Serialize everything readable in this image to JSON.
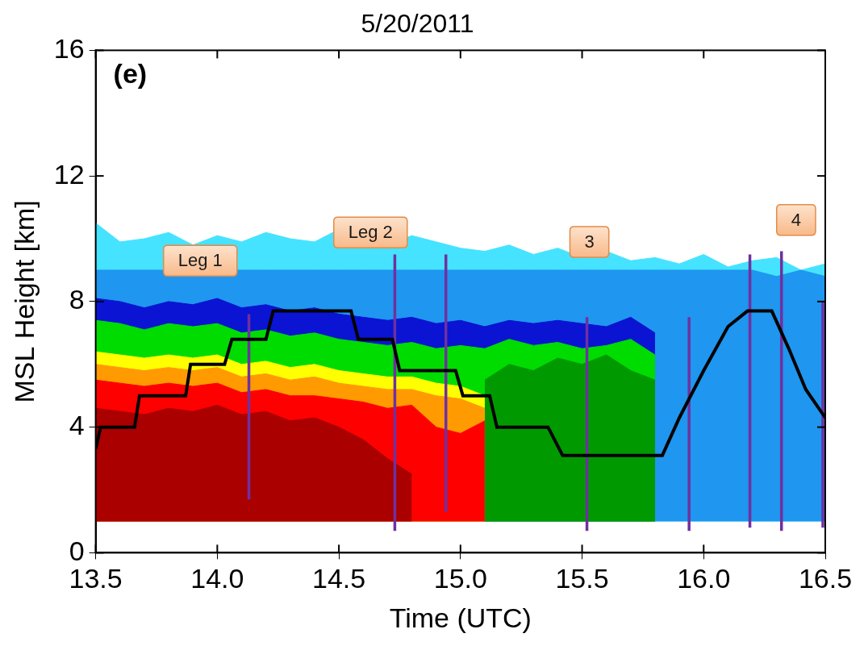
{
  "chart_data": {
    "type": "contour",
    "title": "5/20/2011",
    "panel_label": "(e)",
    "x_label": "Time (UTC)",
    "y_label": "MSL Height [km]",
    "xlim": [
      13.5,
      16.5
    ],
    "xticks": [
      13.5,
      {
        "value": 14,
        "label": "14.0"
      },
      14.5,
      {
        "value": 15,
        "label": "15.0"
      },
      15.5,
      {
        "value": 16,
        "label": "16.0"
      },
      16.5
    ],
    "ylim": [
      0,
      16
    ],
    "yticks": [
      0,
      4,
      8,
      12,
      16
    ],
    "grid": false,
    "legend": false,
    "echo_base": 1,
    "x": [
      13.5,
      13.6,
      13.7,
      13.8,
      13.9,
      14.0,
      14.1,
      14.2,
      14.3,
      14.4,
      14.5,
      14.6,
      14.7,
      14.8,
      14.9,
      15.0,
      15.1,
      15.2,
      15.3,
      15.4,
      15.5,
      15.6,
      15.7,
      15.8,
      15.9,
      16.0,
      16.1,
      16.2,
      16.3,
      16.4,
      16.5
    ],
    "series": [
      {
        "type": "area",
        "color": "#45e3ff",
        "values": [
          10.5,
          9.9,
          10.0,
          10.2,
          9.8,
          10.1,
          9.9,
          10.2,
          10.0,
          9.9,
          10.3,
          10.0,
          9.8,
          10.1,
          9.9,
          9.7,
          9.6,
          9.8,
          9.5,
          9.7,
          9.4,
          9.6,
          9.3,
          9.4,
          9.2,
          9.5,
          9.1,
          9.3,
          9.4,
          9.0,
          9.2
        ]
      },
      {
        "type": "area",
        "color": "#1f96ef",
        "values": [
          9.0,
          9.0,
          9.0,
          9.0,
          9.0,
          9.0,
          9.0,
          9.0,
          9.0,
          9.0,
          9.0,
          9.0,
          9.0,
          9.0,
          9.0,
          9.0,
          9.0,
          9.0,
          9.0,
          9.0,
          9.0,
          9.0,
          9.0,
          9.0,
          9.0,
          9.0,
          9.0,
          9.0,
          8.8,
          9.0,
          8.8
        ]
      },
      {
        "type": "area",
        "color": "#0a14d2",
        "values": [
          8.1,
          8.0,
          7.8,
          8.0,
          7.9,
          8.1,
          7.8,
          7.9,
          7.7,
          7.8,
          7.6,
          7.5,
          7.4,
          7.5,
          7.3,
          7.4,
          7.2,
          7.4,
          7.3,
          7.4,
          7.3,
          7.2,
          7.5,
          7.0,
          null,
          null,
          null,
          null,
          null,
          null,
          null
        ]
      },
      {
        "type": "area",
        "color": "#00dc00",
        "values": [
          7.4,
          7.3,
          7.1,
          7.3,
          7.2,
          7.3,
          7.0,
          7.1,
          6.9,
          7.0,
          6.8,
          6.7,
          6.6,
          6.7,
          6.5,
          6.6,
          6.5,
          6.8,
          6.6,
          6.7,
          6.5,
          6.6,
          6.8,
          6.3,
          null,
          null,
          null,
          null,
          null,
          null,
          null
        ]
      },
      {
        "type": "area",
        "color": "#009a00",
        "values": [
          null,
          null,
          null,
          null,
          null,
          null,
          null,
          null,
          null,
          null,
          null,
          null,
          null,
          null,
          null,
          null,
          5.5,
          6.0,
          5.8,
          6.2,
          6.0,
          6.3,
          5.8,
          5.5,
          null,
          null,
          null,
          null,
          null,
          null,
          null
        ]
      },
      {
        "type": "area",
        "color": "#ffff00",
        "values": [
          6.4,
          6.3,
          6.2,
          6.3,
          6.2,
          6.3,
          6.0,
          6.1,
          5.9,
          6.0,
          5.8,
          5.7,
          5.6,
          5.6,
          5.4,
          5.3,
          5.0,
          null,
          null,
          null,
          null,
          null,
          null,
          null,
          null,
          null,
          null,
          null,
          null,
          null,
          null
        ]
      },
      {
        "type": "area",
        "color": "#ff9a00",
        "values": [
          6.0,
          5.9,
          5.8,
          5.9,
          5.8,
          5.9,
          5.6,
          5.7,
          5.5,
          5.6,
          5.4,
          5.3,
          5.2,
          5.2,
          5.0,
          4.9,
          4.6,
          null,
          null,
          null,
          null,
          null,
          null,
          null,
          null,
          null,
          null,
          null,
          null,
          null,
          null
        ]
      },
      {
        "type": "area",
        "color": "#ff0000",
        "values": [
          5.5,
          5.4,
          5.3,
          5.4,
          5.3,
          5.4,
          5.1,
          5.2,
          5.0,
          5.0,
          4.9,
          4.8,
          4.6,
          4.7,
          4.0,
          3.8,
          4.2,
          null,
          null,
          null,
          null,
          null,
          null,
          null,
          null,
          null,
          null,
          null,
          null,
          null,
          null
        ]
      },
      {
        "type": "area",
        "color": "#aa0000",
        "values": [
          4.6,
          4.5,
          4.4,
          4.6,
          4.5,
          4.7,
          4.4,
          4.5,
          4.2,
          4.3,
          4.0,
          3.6,
          3.0,
          2.5,
          null,
          null,
          null,
          null,
          null,
          null,
          null,
          null,
          null,
          null,
          null,
          null,
          null,
          null,
          null,
          null,
          null
        ]
      },
      {
        "type": "line",
        "color": "#000000",
        "x": [
          13.5,
          13.52,
          13.66,
          13.68,
          13.87,
          13.89,
          14.03,
          14.06,
          14.2,
          14.23,
          14.55,
          14.58,
          14.72,
          14.75,
          14.98,
          15.01,
          15.12,
          15.15,
          15.36,
          15.42,
          15.83,
          15.9,
          16.0,
          16.1,
          16.18,
          16.28,
          16.35,
          16.42,
          16.5
        ],
        "values": [
          3.3,
          4.0,
          4.0,
          5.0,
          5.0,
          6.0,
          6.0,
          6.8,
          6.8,
          7.7,
          7.7,
          6.8,
          6.8,
          5.8,
          5.8,
          5.0,
          5.0,
          4.0,
          4.0,
          3.1,
          3.1,
          4.3,
          5.8,
          7.2,
          7.7,
          7.7,
          6.5,
          5.2,
          4.3
        ]
      }
    ],
    "vertical_lines": {
      "color": "#7030a0",
      "lines": [
        {
          "x": 14.13,
          "y": [
            1.7,
            7.6
          ]
        },
        {
          "x": 14.73,
          "y": [
            0.7,
            9.5
          ]
        },
        {
          "x": 14.94,
          "y": [
            1.3,
            9.5
          ]
        },
        {
          "x": 15.52,
          "y": [
            0.7,
            7.5
          ]
        },
        {
          "x": 15.94,
          "y": [
            0.7,
            7.5
          ]
        },
        {
          "x": 16.19,
          "y": [
            0.8,
            9.5
          ]
        },
        {
          "x": 16.32,
          "y": [
            0.7,
            9.6
          ]
        },
        {
          "x": 16.49,
          "y": [
            0.8,
            8.0
          ]
        }
      ]
    },
    "annotations": [
      {
        "text": "Leg 1",
        "x": 13.93,
        "y": 9.3
      },
      {
        "text": "Leg 2",
        "x": 14.63,
        "y": 10.2
      },
      {
        "text": "3",
        "x": 15.53,
        "y": 9.9
      },
      {
        "text": "4",
        "x": 16.38,
        "y": 10.6
      }
    ]
  }
}
